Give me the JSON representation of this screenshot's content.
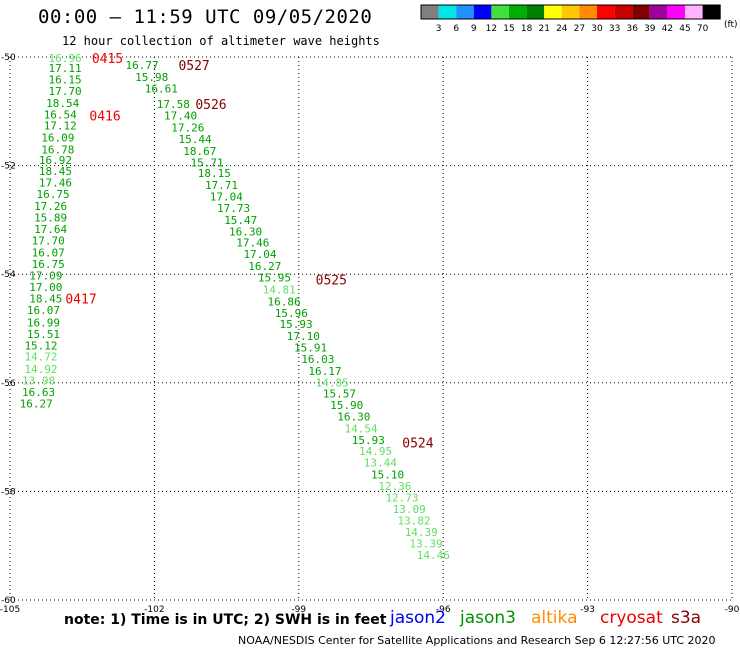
{
  "header": {
    "title": "00:00 – 11:59 UTC 09/05/2020",
    "subtitle": "12 hour collection of altimeter wave heights"
  },
  "colorbar": {
    "units": "(ft)",
    "bins": [
      {
        "color": "#808080",
        "label": "3"
      },
      {
        "color": "#00e5e5",
        "label": "6"
      },
      {
        "color": "#1e90ff",
        "label": "9"
      },
      {
        "color": "#0000ff",
        "label": "12"
      },
      {
        "color": "#40e040",
        "label": "15"
      },
      {
        "color": "#00b000",
        "label": "18"
      },
      {
        "color": "#008000",
        "label": "21"
      },
      {
        "color": "#ffff00",
        "label": "24"
      },
      {
        "color": "#ffc800",
        "label": "27"
      },
      {
        "color": "#ff8c00",
        "label": "30"
      },
      {
        "color": "#ff0000",
        "label": "33"
      },
      {
        "color": "#c80000",
        "label": "36"
      },
      {
        "color": "#800000",
        "label": "39"
      },
      {
        "color": "#a000a0",
        "label": "42"
      },
      {
        "color": "#ff00ff",
        "label": "45"
      },
      {
        "color": "#ffb4ff",
        "label": "70"
      },
      {
        "color": "#000000",
        "label": ""
      }
    ]
  },
  "footer": {
    "note": "note:  1) Time is in UTC;  2) SWH is in feet",
    "credit": "NOAA/NESDIS Center for Satellite Applications and Research    Sep  6 12:27:56 UTC 2020",
    "satellites": [
      {
        "name": "jason2",
        "color": "#0000ee"
      },
      {
        "name": "jason3",
        "color": "#009000"
      },
      {
        "name": "altika",
        "color": "#ff8c00"
      },
      {
        "name": "cryosat",
        "color": "#ee0000"
      },
      {
        "name": "s3a",
        "color": "#880000"
      }
    ]
  },
  "chart_data": {
    "type": "scatter",
    "xlim": [
      -105,
      -90
    ],
    "ylim": [
      -60,
      -50
    ],
    "x_ticks": [
      -105,
      -102,
      -99,
      -96,
      -93,
      -90
    ],
    "y_ticks": [
      -50,
      -52,
      -54,
      -56,
      -58,
      -60
    ],
    "grid": "dotted",
    "colors": {
      "dark": "#00a000",
      "light": "#60e060",
      "west_time": "#ee0000",
      "east_time": "#880000"
    },
    "series": [
      {
        "name": "jason3",
        "points": [
          {
            "x": -104.2,
            "y": -50.02,
            "value": "16.96",
            "c": "light"
          },
          {
            "x": -104.2,
            "y": -50.2,
            "value": "17.11",
            "c": "dark"
          },
          {
            "x": -104.2,
            "y": -50.41,
            "value": "16.15",
            "c": "dark"
          },
          {
            "x": -104.2,
            "y": -50.63,
            "value": "17.70",
            "c": "dark"
          },
          {
            "x": -104.25,
            "y": -50.85,
            "value": "18.54",
            "c": "dark"
          },
          {
            "x": -104.3,
            "y": -51.06,
            "value": "16.54",
            "c": "dark"
          },
          {
            "x": -104.3,
            "y": -51.26,
            "value": "17.12",
            "c": "dark"
          },
          {
            "x": -104.35,
            "y": -51.48,
            "value": "16.09",
            "c": "dark"
          },
          {
            "x": -104.35,
            "y": -51.7,
            "value": "16.78",
            "c": "dark"
          },
          {
            "x": -104.4,
            "y": -51.9,
            "value": "16.92",
            "c": "dark"
          },
          {
            "x": -104.4,
            "y": -52.1,
            "value": "18.45",
            "c": "dark"
          },
          {
            "x": -104.4,
            "y": -52.31,
            "value": "17.46",
            "c": "dark"
          },
          {
            "x": -104.45,
            "y": -52.52,
            "value": "16.75",
            "c": "dark"
          },
          {
            "x": -104.5,
            "y": -52.74,
            "value": "17.26",
            "c": "dark"
          },
          {
            "x": -104.5,
            "y": -52.96,
            "value": "15.89",
            "c": "dark"
          },
          {
            "x": -104.5,
            "y": -53.17,
            "value": "17.64",
            "c": "dark"
          },
          {
            "x": -104.55,
            "y": -53.38,
            "value": "17.70",
            "c": "dark"
          },
          {
            "x": -104.55,
            "y": -53.6,
            "value": "16.07",
            "c": "dark"
          },
          {
            "x": -104.55,
            "y": -53.81,
            "value": "16.75",
            "c": "dark"
          },
          {
            "x": -104.6,
            "y": -54.02,
            "value": "17.09",
            "c": "dark"
          },
          {
            "x": -104.6,
            "y": -54.24,
            "value": "17.00",
            "c": "dark"
          },
          {
            "x": -104.6,
            "y": -54.45,
            "value": "18.45",
            "c": "dark"
          },
          {
            "x": -104.65,
            "y": -54.66,
            "value": "16.07",
            "c": "dark"
          },
          {
            "x": -104.65,
            "y": -54.89,
            "value": "16.99",
            "c": "dark"
          },
          {
            "x": -104.65,
            "y": -55.1,
            "value": "15.51",
            "c": "dark"
          },
          {
            "x": -104.7,
            "y": -55.31,
            "value": "15.12",
            "c": "dark"
          },
          {
            "x": -104.7,
            "y": -55.52,
            "value": "14.72",
            "c": "light"
          },
          {
            "x": -104.7,
            "y": -55.75,
            "value": "14.92",
            "c": "light"
          },
          {
            "x": -104.75,
            "y": -55.96,
            "value": "13.98",
            "c": "light"
          },
          {
            "x": -104.75,
            "y": -56.17,
            "value": "16.63",
            "c": "dark"
          },
          {
            "x": -104.8,
            "y": -56.38,
            "value": "16.27",
            "c": "dark"
          },
          {
            "x": -102.6,
            "y": -50.15,
            "value": "16.77",
            "c": "dark"
          },
          {
            "x": -102.4,
            "y": -50.37,
            "value": "15.98",
            "c": "dark"
          },
          {
            "x": -102.2,
            "y": -50.58,
            "value": "16.61",
            "c": "dark"
          },
          {
            "x": -101.95,
            "y": -50.87,
            "value": "17.58",
            "c": "dark"
          },
          {
            "x": -101.8,
            "y": -51.08,
            "value": "17.40",
            "c": "dark"
          },
          {
            "x": -101.65,
            "y": -51.3,
            "value": "17.26",
            "c": "dark"
          },
          {
            "x": -101.5,
            "y": -51.51,
            "value": "15.44",
            "c": "dark"
          },
          {
            "x": -101.4,
            "y": -51.73,
            "value": "18.67",
            "c": "dark"
          },
          {
            "x": -101.25,
            "y": -51.94,
            "value": "15.71",
            "c": "dark"
          },
          {
            "x": -101.1,
            "y": -52.14,
            "value": "18.15",
            "c": "dark"
          },
          {
            "x": -100.95,
            "y": -52.36,
            "value": "17.71",
            "c": "dark"
          },
          {
            "x": -100.85,
            "y": -52.57,
            "value": "17.04",
            "c": "dark"
          },
          {
            "x": -100.7,
            "y": -52.78,
            "value": "17.73",
            "c": "dark"
          },
          {
            "x": -100.55,
            "y": -53.0,
            "value": "15.47",
            "c": "dark"
          },
          {
            "x": -100.45,
            "y": -53.21,
            "value": "16.30",
            "c": "dark"
          },
          {
            "x": -100.3,
            "y": -53.42,
            "value": "17.46",
            "c": "dark"
          },
          {
            "x": -100.15,
            "y": -53.63,
            "value": "17.04",
            "c": "dark"
          },
          {
            "x": -100.05,
            "y": -53.85,
            "value": "16.27",
            "c": "dark"
          },
          {
            "x": -99.85,
            "y": -54.06,
            "value": "15.95",
            "c": "dark"
          },
          {
            "x": -99.75,
            "y": -54.28,
            "value": "14.81",
            "c": "light"
          },
          {
            "x": -99.65,
            "y": -54.5,
            "value": "16.86",
            "c": "dark"
          },
          {
            "x": -99.5,
            "y": -54.71,
            "value": "15.96",
            "c": "dark"
          },
          {
            "x": -99.4,
            "y": -54.92,
            "value": "15.93",
            "c": "dark"
          },
          {
            "x": -99.25,
            "y": -55.14,
            "value": "17.10",
            "c": "dark"
          },
          {
            "x": -99.1,
            "y": -55.35,
            "value": "15.91",
            "c": "dark"
          },
          {
            "x": -98.95,
            "y": -55.56,
            "value": "16.03",
            "c": "dark"
          },
          {
            "x": -98.8,
            "y": -55.78,
            "value": "16.17",
            "c": "dark"
          },
          {
            "x": -98.65,
            "y": -55.99,
            "value": "14.85",
            "c": "light"
          },
          {
            "x": -98.5,
            "y": -56.2,
            "value": "15.57",
            "c": "dark"
          },
          {
            "x": -98.35,
            "y": -56.41,
            "value": "15.90",
            "c": "dark"
          },
          {
            "x": -98.2,
            "y": -56.62,
            "value": "16.30",
            "c": "dark"
          },
          {
            "x": -98.05,
            "y": -56.84,
            "value": "14.54",
            "c": "light"
          },
          {
            "x": -97.9,
            "y": -57.05,
            "value": "15.93",
            "c": "dark"
          },
          {
            "x": -97.75,
            "y": -57.26,
            "value": "14.95",
            "c": "light"
          },
          {
            "x": -97.65,
            "y": -57.47,
            "value": "13.44",
            "c": "light"
          },
          {
            "x": -97.5,
            "y": -57.69,
            "value": "15.10",
            "c": "dark"
          },
          {
            "x": -97.35,
            "y": -57.9,
            "value": "12.36",
            "c": "light"
          },
          {
            "x": -97.2,
            "y": -58.11,
            "value": "12.73",
            "c": "light"
          },
          {
            "x": -97.05,
            "y": -58.32,
            "value": "13.09",
            "c": "light"
          },
          {
            "x": -96.95,
            "y": -58.54,
            "value": "13.82",
            "c": "light"
          },
          {
            "x": -96.8,
            "y": -58.75,
            "value": "14.39",
            "c": "light"
          },
          {
            "x": -96.7,
            "y": -58.96,
            "value": "13.39",
            "c": "light"
          },
          {
            "x": -96.55,
            "y": -59.17,
            "value": "14.46",
            "c": "light"
          }
        ]
      }
    ],
    "time_labels": [
      {
        "x": -103.3,
        "y": -50.02,
        "text": "0415",
        "c": "west_time"
      },
      {
        "x": -103.35,
        "y": -51.08,
        "text": "0416",
        "c": "west_time"
      },
      {
        "x": -103.85,
        "y": -54.45,
        "text": "0417",
        "c": "west_time"
      },
      {
        "x": -101.5,
        "y": -50.15,
        "text": "0527",
        "c": "east_time"
      },
      {
        "x": -101.15,
        "y": -50.87,
        "text": "0526",
        "c": "east_time"
      },
      {
        "x": -98.65,
        "y": -54.1,
        "text": "0525",
        "c": "east_time"
      },
      {
        "x": -96.85,
        "y": -57.1,
        "text": "0524",
        "c": "east_time"
      }
    ]
  }
}
